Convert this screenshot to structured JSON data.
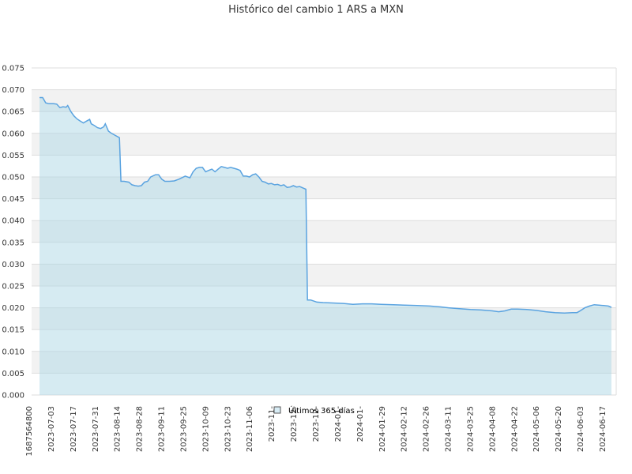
{
  "chart_data": {
    "type": "area",
    "title": "Histórico del cambio 1 ARS a MXN",
    "xlabel": "",
    "ylabel": "",
    "ylim": [
      0,
      0.075
    ],
    "y_ticks": [
      "0.000",
      "0.005",
      "0.010",
      "0.015",
      "0.020",
      "0.025",
      "0.030",
      "0.035",
      "0.040",
      "0.045",
      "0.050",
      "0.055",
      "0.060",
      "0.065",
      "0.070",
      "0.075"
    ],
    "x_ticks": [
      "1687564800",
      "2023-07-03",
      "2023-07-17",
      "2023-07-31",
      "2023-08-14",
      "2023-08-28",
      "2023-09-11",
      "2023-09-25",
      "2023-10-09",
      "2023-10-23",
      "2023-11-06",
      "2023-11-",
      "2023-12-",
      "2023-12-",
      "2024-01-",
      "2024-01-",
      "2024-01-29",
      "2024-02-12",
      "2024-02-26",
      "2024-03-11",
      "2024-03-25",
      "2024-04-08",
      "2024-04-22",
      "2024-05-06",
      "2024-05-20",
      "2024-06-03",
      "2024-06-17"
    ],
    "grid": true,
    "legend_position": "bottom-center",
    "colors": {
      "line": "#5aa3e0",
      "fill": "#add8e6",
      "band": "#f2f2f2"
    },
    "series": [
      {
        "name": "Últimos 365 días",
        "points": [
          [
            "2023-06-24",
            0.0682
          ],
          [
            "2023-06-26",
            0.0682
          ],
          [
            "2023-06-28",
            0.067
          ],
          [
            "2023-06-30",
            0.0668
          ],
          [
            "2023-07-03",
            0.0668
          ],
          [
            "2023-07-05",
            0.0667
          ],
          [
            "2023-07-07",
            0.0659
          ],
          [
            "2023-07-09",
            0.0661
          ],
          [
            "2023-07-11",
            0.066
          ],
          [
            "2023-07-12",
            0.0664
          ],
          [
            "2023-07-14",
            0.065
          ],
          [
            "2023-07-16",
            0.064
          ],
          [
            "2023-07-18",
            0.0633
          ],
          [
            "2023-07-20",
            0.0628
          ],
          [
            "2023-07-22",
            0.0624
          ],
          [
            "2023-07-24",
            0.0628
          ],
          [
            "2023-07-26",
            0.0632
          ],
          [
            "2023-07-27",
            0.0622
          ],
          [
            "2023-07-29",
            0.0618
          ],
          [
            "2023-07-31",
            0.0613
          ],
          [
            "2023-08-02",
            0.0611
          ],
          [
            "2023-08-04",
            0.0615
          ],
          [
            "2023-08-05",
            0.0622
          ],
          [
            "2023-08-07",
            0.0605
          ],
          [
            "2023-08-09",
            0.06
          ],
          [
            "2023-08-11",
            0.0596
          ],
          [
            "2023-08-13",
            0.0592
          ],
          [
            "2023-08-14",
            0.059
          ],
          [
            "2023-08-15",
            0.049
          ],
          [
            "2023-08-17",
            0.049
          ],
          [
            "2023-08-20",
            0.0488
          ],
          [
            "2023-08-22",
            0.0482
          ],
          [
            "2023-08-24",
            0.048
          ],
          [
            "2023-08-26",
            0.0479
          ],
          [
            "2023-08-28",
            0.048
          ],
          [
            "2023-08-30",
            0.0488
          ],
          [
            "2023-09-01",
            0.049
          ],
          [
            "2023-09-03",
            0.05
          ],
          [
            "2023-09-06",
            0.0505
          ],
          [
            "2023-09-08",
            0.0505
          ],
          [
            "2023-09-10",
            0.0495
          ],
          [
            "2023-09-12",
            0.049
          ],
          [
            "2023-09-15",
            0.049
          ],
          [
            "2023-09-18",
            0.0491
          ],
          [
            "2023-09-21",
            0.0495
          ],
          [
            "2023-09-25",
            0.0502
          ],
          [
            "2023-09-28",
            0.0498
          ],
          [
            "2023-09-30",
            0.0512
          ],
          [
            "2023-10-02",
            0.052
          ],
          [
            "2023-10-04",
            0.0522
          ],
          [
            "2023-10-06",
            0.0522
          ],
          [
            "2023-10-08",
            0.0512
          ],
          [
            "2023-10-10",
            0.0515
          ],
          [
            "2023-10-12",
            0.0518
          ],
          [
            "2023-10-14",
            0.0512
          ],
          [
            "2023-10-16",
            0.0518
          ],
          [
            "2023-10-18",
            0.0524
          ],
          [
            "2023-10-20",
            0.0522
          ],
          [
            "2023-10-22",
            0.052
          ],
          [
            "2023-10-24",
            0.0522
          ],
          [
            "2023-10-26",
            0.052
          ],
          [
            "2023-10-28",
            0.0518
          ],
          [
            "2023-10-30",
            0.0515
          ],
          [
            "2023-11-01",
            0.0502
          ],
          [
            "2023-11-03",
            0.0502
          ],
          [
            "2023-11-05",
            0.05
          ],
          [
            "2023-11-07",
            0.0505
          ],
          [
            "2023-11-09",
            0.0507
          ],
          [
            "2023-11-11",
            0.05
          ],
          [
            "2023-11-13",
            0.049
          ],
          [
            "2023-11-15",
            0.0488
          ],
          [
            "2023-11-17",
            0.0484
          ],
          [
            "2023-11-19",
            0.0485
          ],
          [
            "2023-11-21",
            0.0482
          ],
          [
            "2023-11-23",
            0.0483
          ],
          [
            "2023-11-25",
            0.048
          ],
          [
            "2023-11-27",
            0.0482
          ],
          [
            "2023-11-29",
            0.0476
          ],
          [
            "2023-12-01",
            0.0477
          ],
          [
            "2023-12-03",
            0.048
          ],
          [
            "2023-12-05",
            0.0477
          ],
          [
            "2023-12-07",
            0.0478
          ],
          [
            "2023-12-09",
            0.0475
          ],
          [
            "2023-12-11",
            0.0472
          ],
          [
            "2023-12-12",
            0.0218
          ],
          [
            "2023-12-14",
            0.0218
          ],
          [
            "2023-12-18",
            0.0213
          ],
          [
            "2023-12-22",
            0.0212
          ],
          [
            "2023-12-28",
            0.0211
          ],
          [
            "2024-01-04",
            0.021
          ],
          [
            "2024-01-10",
            0.0208
          ],
          [
            "2024-01-16",
            0.0209
          ],
          [
            "2024-01-22",
            0.0209
          ],
          [
            "2024-01-28",
            0.0208
          ],
          [
            "2024-02-05",
            0.0207
          ],
          [
            "2024-02-12",
            0.0206
          ],
          [
            "2024-02-20",
            0.0205
          ],
          [
            "2024-02-28",
            0.0204
          ],
          [
            "2024-03-06",
            0.0202
          ],
          [
            "2024-03-11",
            0.02
          ],
          [
            "2024-03-18",
            0.0198
          ],
          [
            "2024-03-25",
            0.0196
          ],
          [
            "2024-04-01",
            0.0195
          ],
          [
            "2024-04-08",
            0.0193
          ],
          [
            "2024-04-12",
            0.0191
          ],
          [
            "2024-04-16",
            0.0193
          ],
          [
            "2024-04-20",
            0.0197
          ],
          [
            "2024-04-24",
            0.0197
          ],
          [
            "2024-04-30",
            0.0196
          ],
          [
            "2024-05-06",
            0.0194
          ],
          [
            "2024-05-12",
            0.0191
          ],
          [
            "2024-05-18",
            0.0189
          ],
          [
            "2024-05-24",
            0.0188
          ],
          [
            "2024-05-29",
            0.0189
          ],
          [
            "2024-06-01",
            0.0189
          ],
          [
            "2024-06-03",
            0.0193
          ],
          [
            "2024-06-06",
            0.02
          ],
          [
            "2024-06-09",
            0.0204
          ],
          [
            "2024-06-12",
            0.0207
          ],
          [
            "2024-06-15",
            0.0206
          ],
          [
            "2024-06-18",
            0.0205
          ],
          [
            "2024-06-21",
            0.0204
          ],
          [
            "2024-06-23",
            0.0201
          ]
        ]
      }
    ]
  }
}
